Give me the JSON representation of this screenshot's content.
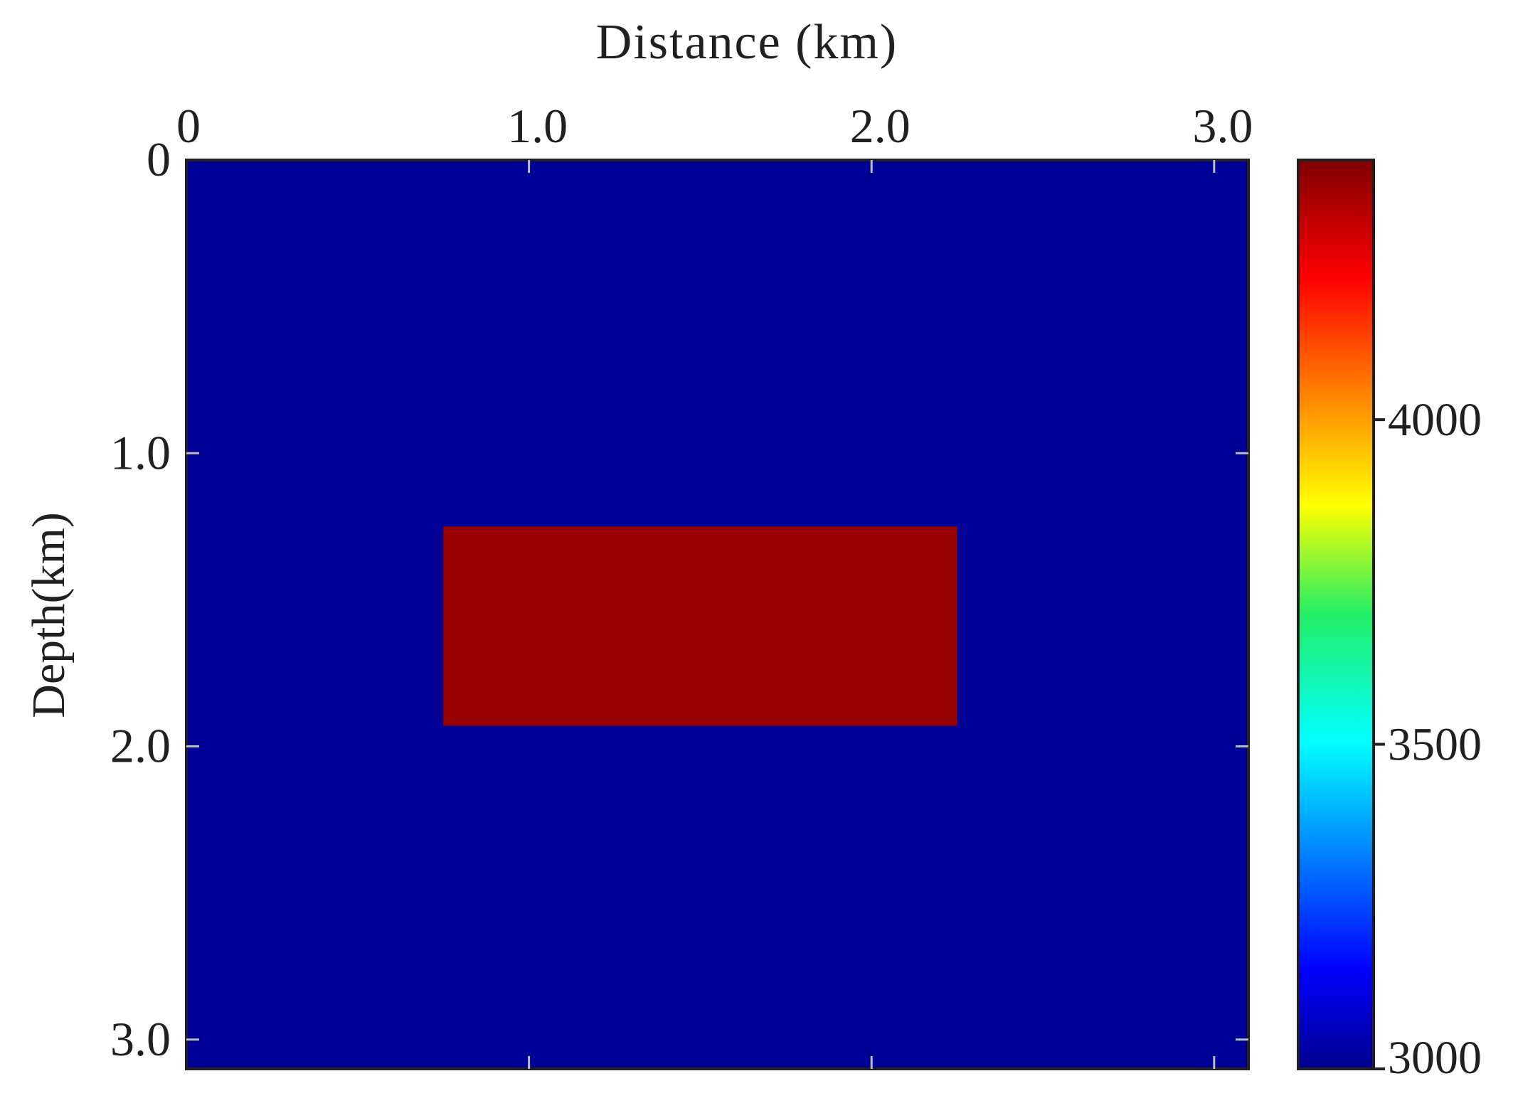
{
  "chart_data": {
    "type": "heatmap",
    "title": "",
    "xlabel": "Distance (km)",
    "ylabel": "Depth(km)",
    "x_axis_position": "top",
    "xlim": [
      0,
      3.1
    ],
    "ylim": [
      0,
      3.1
    ],
    "y_inverted": true,
    "x_ticks": [
      {
        "value": 0,
        "label": "0"
      },
      {
        "value": 1.0,
        "label": "1.0"
      },
      {
        "value": 2.0,
        "label": "2.0"
      },
      {
        "value": 3.0,
        "label": "3.0"
      }
    ],
    "y_ticks": [
      {
        "value": 0,
        "label": "0"
      },
      {
        "value": 1.0,
        "label": "1.0"
      },
      {
        "value": 2.0,
        "label": "2.0"
      },
      {
        "value": 3.0,
        "label": "3.0"
      }
    ],
    "background_value": 3000,
    "anomalies": [
      {
        "shape": "rectangle",
        "x": [
          0.75,
          2.25
        ],
        "y": [
          1.25,
          1.93
        ],
        "value": 4400
      }
    ],
    "colorbar": {
      "range": [
        3000,
        4400
      ],
      "colormap": "jet",
      "ticks": [
        {
          "value": 3000,
          "label": "3000"
        },
        {
          "value": 3500,
          "label": "3500"
        },
        {
          "value": 4000,
          "label": "4000"
        }
      ]
    },
    "grid": false,
    "legend": "none"
  },
  "colors": {
    "background_model": "#000096",
    "anomaly": "#960000",
    "axis": "#231f20"
  }
}
